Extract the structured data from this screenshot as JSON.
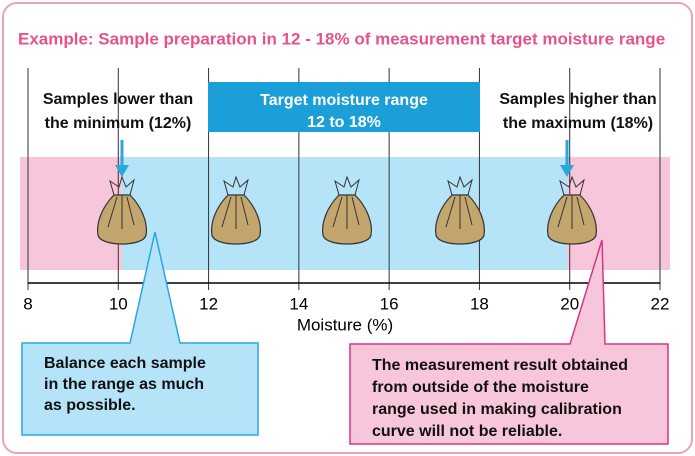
{
  "title": "Example: Sample preparation in 12 - 18% of measurement target moisture range",
  "target_box": {
    "lines": [
      "Target moisture range",
      "12 to 18%"
    ]
  },
  "left_label": {
    "lines": [
      "Samples lower than",
      "the minimum (12%)"
    ]
  },
  "right_label": {
    "lines": [
      "Samples higher than",
      "the maximum (18%)"
    ]
  },
  "axis": {
    "label": "Moisture (%)",
    "ticks": [
      8,
      10,
      12,
      14,
      16,
      18,
      20,
      22
    ]
  },
  "left_callout": {
    "lines": [
      "Balance each sample",
      "in the range as much",
      "as possible."
    ]
  },
  "right_callout": {
    "lines": [
      "The measurement result obtained",
      "from outside of the moisture",
      "range used in making calibration",
      "curve will not be reliable."
    ]
  }
}
